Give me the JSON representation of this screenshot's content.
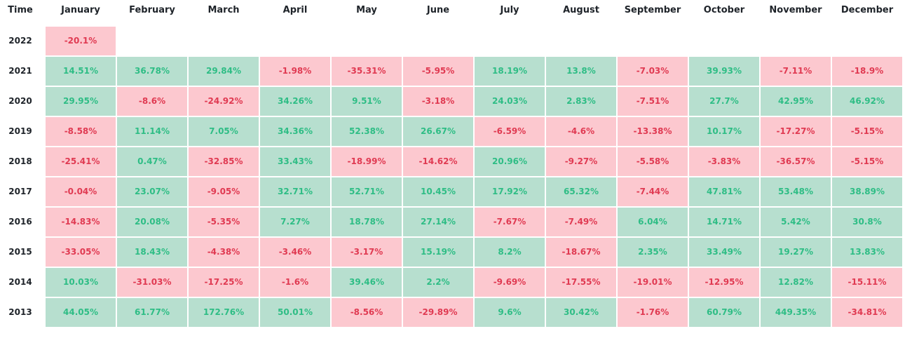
{
  "table": {
    "header": [
      "Time",
      "January",
      "February",
      "March",
      "April",
      "May",
      "June",
      "July",
      "August",
      "September",
      "October",
      "November",
      "December"
    ],
    "rows": [
      {
        "year": "2022",
        "cells": [
          "-20.1%"
        ]
      },
      {
        "year": "2021",
        "cells": [
          "14.51%",
          "36.78%",
          "29.84%",
          "-1.98%",
          "-35.31%",
          "-5.95%",
          "18.19%",
          "13.8%",
          "-7.03%",
          "39.93%",
          "-7.11%",
          "-18.9%"
        ]
      },
      {
        "year": "2020",
        "cells": [
          "29.95%",
          "-8.6%",
          "-24.92%",
          "34.26%",
          "9.51%",
          "-3.18%",
          "24.03%",
          "2.83%",
          "-7.51%",
          "27.7%",
          "42.95%",
          "46.92%"
        ]
      },
      {
        "year": "2019",
        "cells": [
          "-8.58%",
          "11.14%",
          "7.05%",
          "34.36%",
          "52.38%",
          "26.67%",
          "-6.59%",
          "-4.6%",
          "-13.38%",
          "10.17%",
          "-17.27%",
          "-5.15%"
        ]
      },
      {
        "year": "2018",
        "cells": [
          "-25.41%",
          "0.47%",
          "-32.85%",
          "33.43%",
          "-18.99%",
          "-14.62%",
          "20.96%",
          "-9.27%",
          "-5.58%",
          "-3.83%",
          "-36.57%",
          "-5.15%"
        ]
      },
      {
        "year": "2017",
        "cells": [
          "-0.04%",
          "23.07%",
          "-9.05%",
          "32.71%",
          "52.71%",
          "10.45%",
          "17.92%",
          "65.32%",
          "-7.44%",
          "47.81%",
          "53.48%",
          "38.89%"
        ]
      },
      {
        "year": "2016",
        "cells": [
          "-14.83%",
          "20.08%",
          "-5.35%",
          "7.27%",
          "18.78%",
          "27.14%",
          "-7.67%",
          "-7.49%",
          "6.04%",
          "14.71%",
          "5.42%",
          "30.8%"
        ]
      },
      {
        "year": "2015",
        "cells": [
          "-33.05%",
          "18.43%",
          "-4.38%",
          "-3.46%",
          "-3.17%",
          "15.19%",
          "8.2%",
          "-18.67%",
          "2.35%",
          "33.49%",
          "19.27%",
          "13.83%"
        ]
      },
      {
        "year": "2014",
        "cells": [
          "10.03%",
          "-31.03%",
          "-17.25%",
          "-1.6%",
          "39.46%",
          "2.2%",
          "-9.69%",
          "-17.55%",
          "-19.01%",
          "-12.95%",
          "12.82%",
          "-15.11%"
        ]
      },
      {
        "year": "2013",
        "cells": [
          "44.05%",
          "61.77%",
          "172.76%",
          "50.01%",
          "-8.56%",
          "-29.89%",
          "9.6%",
          "30.42%",
          "-1.76%",
          "60.79%",
          "449.35%",
          "-34.81%"
        ]
      }
    ]
  }
}
